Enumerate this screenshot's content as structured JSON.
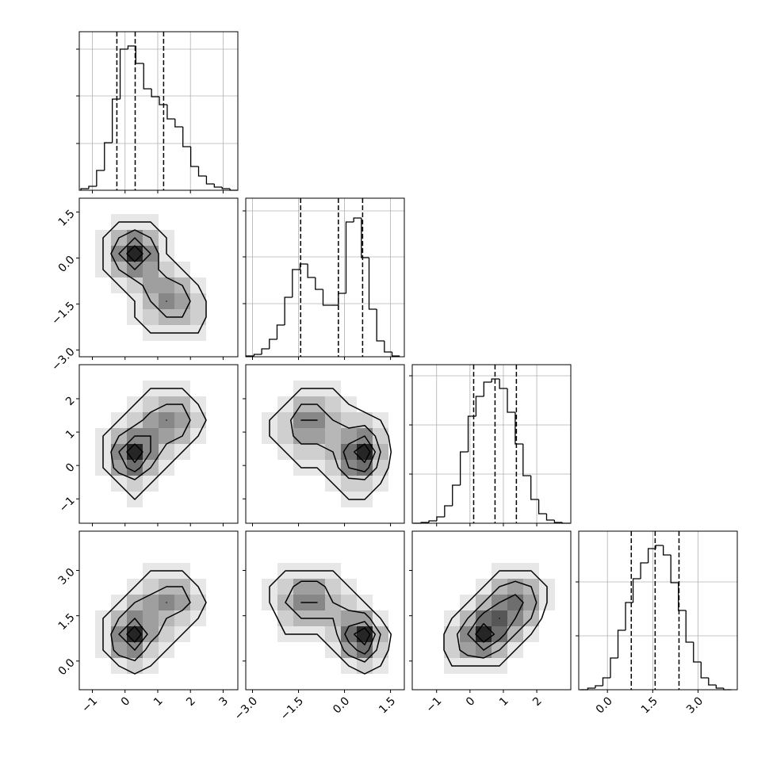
{
  "chart_data": {
    "type": "corner",
    "hist_ylim": [
      0,
      200
    ],
    "levels": [
      1,
      3,
      5,
      7
    ],
    "dimensions": [
      {
        "lim": [
          -1.4,
          3.45
        ],
        "ticks": [
          {
            "value": -1,
            "label": "−1"
          },
          0,
          1,
          2,
          3
        ],
        "bins": [
          -1.35,
          -1.11,
          -0.87,
          -0.63,
          -0.39,
          -0.15,
          0.09,
          0.33,
          0.57,
          0.81,
          1.05,
          1.29,
          1.53,
          1.77,
          2.01,
          2.25,
          2.49,
          2.73,
          2.97,
          3.21,
          3.45
        ],
        "counts": [
          2,
          5,
          25,
          60,
          115,
          178,
          182,
          160,
          128,
          118,
          108,
          90,
          80,
          55,
          30,
          18,
          8,
          4,
          2,
          0
        ],
        "quantiles": [
          -0.25,
          0.31,
          1.18
        ],
        "hist_yticks": [
          59,
          119,
          178
        ]
      },
      {
        "lim": [
          -3.22,
          1.95
        ],
        "ticks": [
          {
            "value": -3,
            "label": "−3.0"
          },
          {
            "value": -1.5,
            "label": "−1.5"
          },
          {
            "value": 0,
            "label": "0.0"
          },
          1.5
        ],
        "bins": [
          -3.2,
          -2.95,
          -2.7,
          -2.45,
          -2.2,
          -1.95,
          -1.7,
          -1.45,
          -1.2,
          -0.95,
          -0.7,
          -0.45,
          -0.2,
          0.05,
          0.3,
          0.55,
          0.8,
          1.05,
          1.3,
          1.55,
          1.8
        ],
        "counts": [
          1,
          3,
          10,
          22,
          40,
          75,
          110,
          117,
          100,
          85,
          65,
          65,
          80,
          170,
          175,
          125,
          60,
          20,
          6,
          1
        ],
        "quantiles": [
          -1.43,
          -0.2,
          0.59
        ],
        "hist_yticks": [
          67,
          126,
          184
        ]
      },
      {
        "lim": [
          -1.73,
          3.02
        ],
        "ticks": [
          {
            "value": -1,
            "label": "−1"
          },
          0,
          1,
          2
        ],
        "bins": [
          -1.7,
          -1.465,
          -1.23,
          -0.995,
          -0.76,
          -0.525,
          -0.29,
          -0.055,
          0.18,
          0.415,
          0.65,
          0.885,
          1.12,
          1.355,
          1.59,
          1.825,
          2.06,
          2.295,
          2.53,
          2.765,
          3.0
        ],
        "counts": [
          0,
          1,
          3,
          8,
          22,
          48,
          90,
          135,
          160,
          178,
          182,
          170,
          140,
          100,
          60,
          30,
          12,
          4,
          1,
          0
        ],
        "quantiles": [
          0.11,
          0.75,
          1.39
        ],
        "hist_yticks": [
          62,
          124,
          186
        ]
      },
      {
        "lim": [
          -0.95,
          4.3
        ],
        "ticks": [
          {
            "value": 0,
            "label": "0.0"
          },
          1.5,
          {
            "value": 3,
            "label": "3.0"
          }
        ],
        "bins": [
          -0.9,
          -0.65,
          -0.4,
          -0.15,
          0.1,
          0.35,
          0.6,
          0.85,
          1.1,
          1.35,
          1.6,
          1.85,
          2.1,
          2.35,
          2.6,
          2.85,
          3.1,
          3.35,
          3.6,
          3.85,
          4.1
        ],
        "counts": [
          0,
          2,
          5,
          15,
          40,
          75,
          110,
          140,
          160,
          178,
          182,
          170,
          135,
          100,
          60,
          35,
          15,
          6,
          2,
          0
        ],
        "quantiles": [
          0.79,
          1.58,
          2.37
        ],
        "hist_yticks": [
          68,
          136
        ]
      }
    ],
    "density": [
      [
        [
          0,
          0,
          0,
          0,
          0,
          0,
          0,
          0,
          0,
          0
        ],
        [
          0,
          0,
          1,
          1,
          1,
          0,
          0,
          0,
          0,
          0
        ],
        [
          0,
          1,
          3,
          5,
          3,
          1,
          0,
          0,
          0,
          0
        ],
        [
          0,
          1,
          5,
          9,
          5,
          1,
          0,
          0,
          0,
          0
        ],
        [
          0,
          1,
          3,
          5,
          4,
          2,
          1,
          0,
          0,
          0
        ],
        [
          0,
          0,
          1,
          2,
          4,
          4,
          3,
          1,
          0,
          0
        ],
        [
          0,
          0,
          0,
          1,
          3,
          5,
          4,
          2,
          0,
          0
        ],
        [
          0,
          0,
          0,
          1,
          2,
          3,
          3,
          2,
          0,
          0
        ],
        [
          0,
          0,
          0,
          0,
          1,
          1,
          1,
          1,
          0,
          0
        ],
        [
          0,
          0,
          0,
          0,
          0,
          0,
          0,
          0,
          0,
          0
        ]
      ],
      [
        [
          0,
          0,
          0,
          0,
          0,
          0,
          0,
          0,
          0,
          0
        ],
        [
          0,
          0,
          0,
          0,
          1,
          1,
          1,
          0,
          0,
          0
        ],
        [
          0,
          0,
          0,
          1,
          2,
          3,
          3,
          1,
          0,
          0
        ],
        [
          0,
          0,
          1,
          2,
          4,
          5,
          4,
          2,
          0,
          0
        ],
        [
          0,
          1,
          3,
          5,
          5,
          4,
          3,
          1,
          0,
          0
        ],
        [
          0,
          1,
          5,
          9,
          5,
          2,
          1,
          0,
          0,
          0
        ],
        [
          0,
          1,
          4,
          6,
          3,
          1,
          0,
          0,
          0,
          0
        ],
        [
          0,
          0,
          1,
          2,
          1,
          0,
          0,
          0,
          0,
          0
        ],
        [
          0,
          0,
          0,
          1,
          0,
          0,
          0,
          0,
          0,
          0
        ],
        [
          0,
          0,
          0,
          0,
          0,
          0,
          0,
          0,
          0,
          0
        ]
      ],
      [
        [
          0,
          0,
          0,
          0,
          0,
          0,
          0,
          0,
          0,
          0
        ],
        [
          0,
          0,
          0,
          1,
          1,
          1,
          0,
          0,
          0,
          0
        ],
        [
          0,
          0,
          1,
          3,
          3,
          2,
          1,
          0,
          0,
          0
        ],
        [
          0,
          1,
          2,
          5,
          5,
          3,
          2,
          2,
          1,
          0
        ],
        [
          0,
          1,
          2,
          4,
          4,
          3,
          4,
          5,
          2,
          0
        ],
        [
          0,
          0,
          1,
          2,
          2,
          3,
          6,
          9,
          3,
          0
        ],
        [
          0,
          0,
          0,
          1,
          1,
          2,
          5,
          6,
          2,
          0
        ],
        [
          0,
          0,
          0,
          0,
          0,
          1,
          2,
          2,
          1,
          0
        ],
        [
          0,
          0,
          0,
          0,
          0,
          0,
          1,
          1,
          0,
          0
        ],
        [
          0,
          0,
          0,
          0,
          0,
          0,
          0,
          0,
          0,
          0
        ]
      ],
      [
        [
          0,
          0,
          0,
          0,
          0,
          0,
          0,
          0,
          0,
          0
        ],
        [
          0,
          0,
          0,
          0,
          0,
          0,
          0,
          0,
          0,
          0
        ],
        [
          0,
          0,
          0,
          0,
          1,
          1,
          1,
          0,
          0,
          0
        ],
        [
          0,
          0,
          0,
          1,
          2,
          3,
          3,
          1,
          0,
          0
        ],
        [
          0,
          0,
          1,
          3,
          4,
          5,
          4,
          2,
          0,
          0
        ],
        [
          0,
          1,
          3,
          5,
          4,
          3,
          2,
          1,
          0,
          0
        ],
        [
          0,
          1,
          5,
          9,
          4,
          2,
          1,
          0,
          0,
          0
        ],
        [
          0,
          1,
          4,
          5,
          2,
          1,
          0,
          0,
          0,
          0
        ],
        [
          0,
          0,
          1,
          2,
          1,
          0,
          0,
          0,
          0,
          0
        ],
        [
          0,
          0,
          0,
          0,
          0,
          0,
          0,
          0,
          0,
          0
        ]
      ],
      [
        [
          0,
          0,
          0,
          0,
          0,
          0,
          0,
          0,
          0,
          0
        ],
        [
          0,
          0,
          0,
          0,
          0,
          0,
          0,
          0,
          0,
          0
        ],
        [
          0,
          0,
          1,
          1,
          1,
          1,
          0,
          0,
          0,
          0
        ],
        [
          0,
          1,
          2,
          4,
          4,
          2,
          1,
          0,
          0,
          0
        ],
        [
          0,
          1,
          3,
          5,
          5,
          3,
          2,
          1,
          0,
          0
        ],
        [
          0,
          0,
          2,
          3,
          3,
          3,
          4,
          4,
          1,
          0
        ],
        [
          0,
          0,
          1,
          1,
          1,
          2,
          6,
          9,
          3,
          0
        ],
        [
          0,
          0,
          0,
          0,
          0,
          1,
          4,
          6,
          2,
          0
        ],
        [
          0,
          0,
          0,
          0,
          0,
          0,
          1,
          2,
          1,
          0
        ],
        [
          0,
          0,
          0,
          0,
          0,
          0,
          0,
          0,
          0,
          0
        ]
      ],
      [
        [
          0,
          0,
          0,
          0,
          0,
          0,
          0,
          0,
          0,
          0
        ],
        [
          0,
          0,
          0,
          0,
          0,
          0,
          0,
          0,
          0,
          0
        ],
        [
          0,
          0,
          0,
          0,
          0,
          1,
          1,
          1,
          0,
          0
        ],
        [
          0,
          0,
          0,
          0,
          1,
          3,
          4,
          3,
          1,
          0
        ],
        [
          0,
          0,
          0,
          1,
          3,
          5,
          6,
          4,
          1,
          0
        ],
        [
          0,
          0,
          1,
          3,
          6,
          7,
          5,
          3,
          0,
          0
        ],
        [
          0,
          0,
          2,
          5,
          9,
          6,
          3,
          1,
          0,
          0
        ],
        [
          0,
          0,
          2,
          4,
          5,
          3,
          1,
          0,
          0,
          0
        ],
        [
          0,
          0,
          1,
          1,
          1,
          1,
          0,
          0,
          0,
          0
        ],
        [
          0,
          0,
          0,
          0,
          0,
          0,
          0,
          0,
          0,
          0
        ]
      ]
    ]
  }
}
